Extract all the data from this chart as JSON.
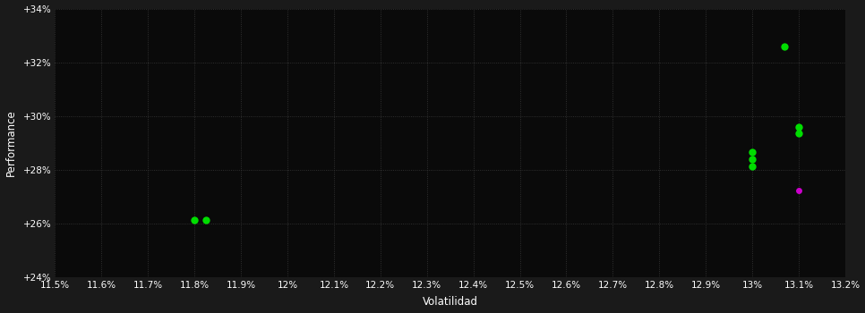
{
  "background_color": "#1a1a1a",
  "plot_bg_color": "#0a0a0a",
  "text_color": "#ffffff",
  "xlabel": "Volatilidad",
  "ylabel": "Performance",
  "xlim": [
    11.5,
    13.2
  ],
  "ylim": [
    24.0,
    34.0
  ],
  "xticks": [
    11.5,
    11.6,
    11.7,
    11.8,
    11.9,
    12.0,
    12.1,
    12.2,
    12.3,
    12.4,
    12.5,
    12.6,
    12.7,
    12.8,
    12.9,
    13.0,
    13.1,
    13.2
  ],
  "xtick_labels": [
    "11.5%",
    "11.6%",
    "11.7%",
    "11.8%",
    "11.9%",
    "12%",
    "12.1%",
    "12.2%",
    "12.3%",
    "12.4%",
    "12.5%",
    "12.6%",
    "12.7%",
    "12.8%",
    "12.9%",
    "13%",
    "13.1%",
    "13.2%"
  ],
  "yticks": [
    24,
    26,
    28,
    30,
    32,
    34
  ],
  "ytick_labels": [
    "+24%",
    "+26%",
    "+28%",
    "+30%",
    "+32%",
    "+34%"
  ],
  "points_green": [
    [
      11.8,
      26.15
    ],
    [
      11.825,
      26.15
    ],
    [
      13.0,
      28.65
    ],
    [
      13.0,
      28.4
    ],
    [
      13.0,
      28.15
    ],
    [
      13.1,
      29.6
    ],
    [
      13.1,
      29.35
    ],
    [
      13.07,
      32.6
    ]
  ],
  "points_magenta": [
    [
      13.1,
      27.25
    ]
  ],
  "marker_size_green": 6,
  "marker_size_magenta": 5
}
